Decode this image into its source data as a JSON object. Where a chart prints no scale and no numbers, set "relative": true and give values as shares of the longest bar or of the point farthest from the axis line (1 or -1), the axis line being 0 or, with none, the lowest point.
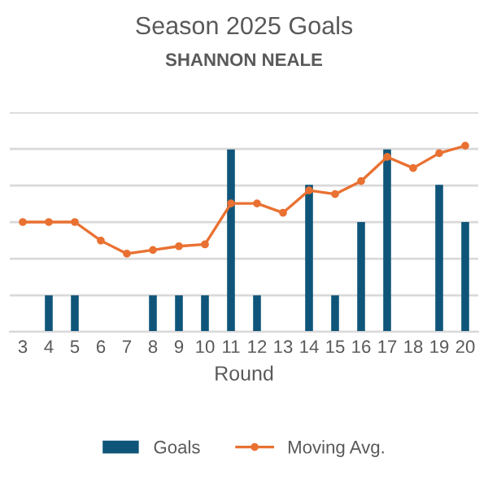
{
  "chart_data": {
    "type": "bar",
    "title": "Season 2025 Goals",
    "subtitle": "SHANNON NEALE",
    "xlabel": "Round",
    "relative": true,
    "grid": "y",
    "legend": "bottom",
    "categories": [
      "3",
      "4",
      "5",
      "6",
      "7",
      "8",
      "9",
      "10",
      "11",
      "12",
      "13",
      "14",
      "15",
      "16",
      "17",
      "18",
      "19",
      "20"
    ],
    "series": [
      {
        "name": "Goals",
        "color": "#0f5579",
        "values": [
          0,
          0.196,
          0.196,
          0,
          0,
          0.196,
          0.196,
          0.196,
          0.98,
          0.196,
          0,
          0.79,
          0.196,
          0.59,
          0.98,
          0,
          0.79,
          0.59
        ]
      },
      {
        "name": "Moving Avg.",
        "type": "line",
        "color": "#e97132",
        "marker": "circle",
        "line_style": "solid",
        "values": [
          0.59,
          0.59,
          0.59,
          0.49,
          0.42,
          0.44,
          0.46,
          0.47,
          0.69,
          0.69,
          0.64,
          0.76,
          0.74,
          0.81,
          0.94,
          0.88,
          0.96,
          1
        ]
      }
    ]
  }
}
